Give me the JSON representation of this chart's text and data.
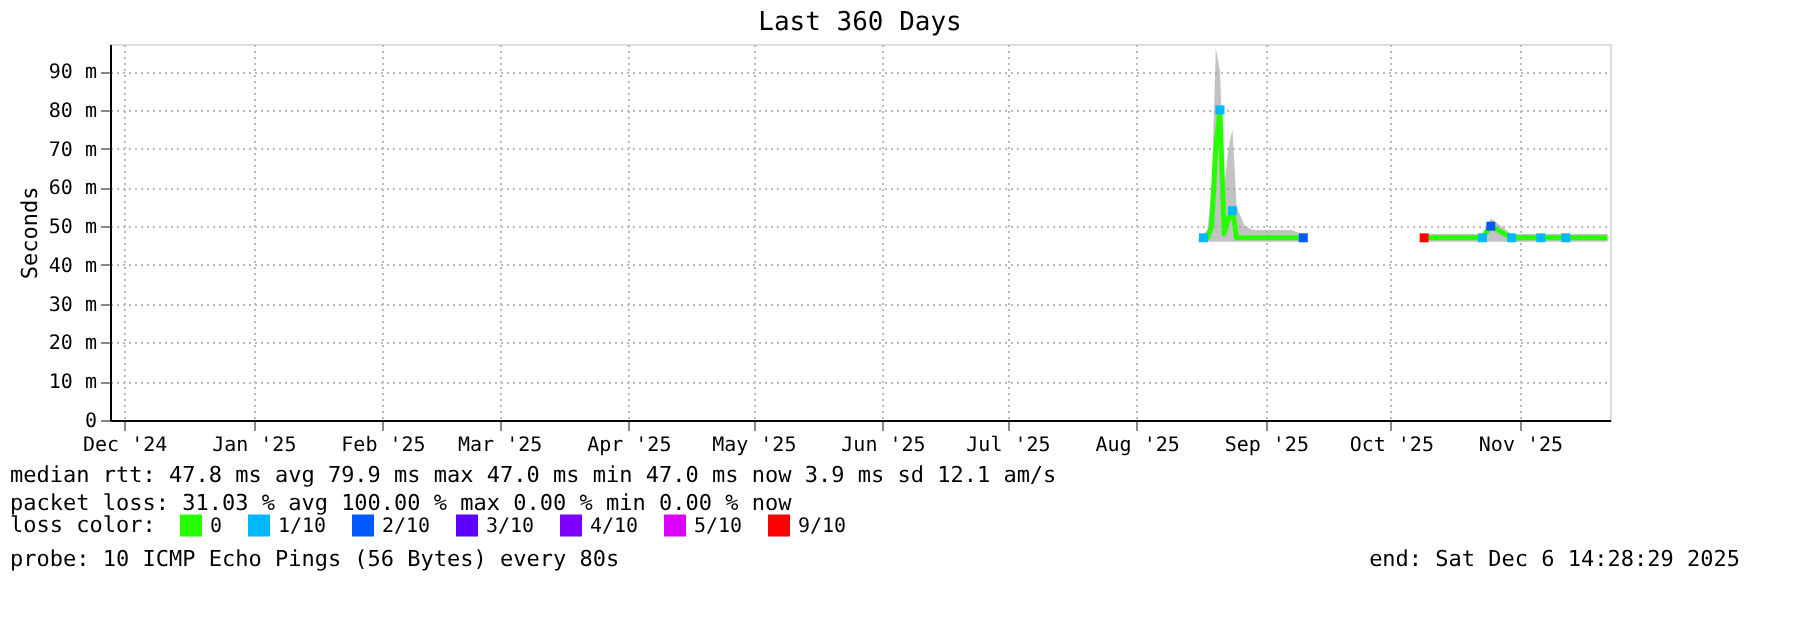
{
  "chart_data": {
    "type": "line",
    "title": "Last 360 Days",
    "ylabel": "Seconds",
    "legend_title": "loss color:",
    "legend": "bottom",
    "grid": true,
    "x": [
      "2025-08-31",
      "2025-09-01",
      "2025-09-02",
      "2025-09-03",
      "2025-09-04",
      "2025-09-05",
      "2025-09-06",
      "2025-09-07",
      "2025-09-08",
      "2025-09-10",
      "2025-09-12",
      "2025-09-15",
      "2025-09-18",
      "2025-09-21",
      "2025-09-24",
      "2025-10-08",
      "2025-10-23",
      "2025-10-30",
      "2025-11-06",
      "2025-11-08",
      "2025-11-13",
      "2025-11-20",
      "2025-11-26",
      "2025-12-02",
      "2025-12-06"
    ],
    "xlim": [
      "2024-12-11T14:28",
      "2025-12-06T14:28"
    ],
    "xticks": [
      {
        "value": "2024-12-15",
        "label": "Dec '24"
      },
      {
        "value": "2025-01-15",
        "label": "Jan '25"
      },
      {
        "value": "2025-02-15",
        "label": "Feb '25"
      },
      {
        "value": "2025-03-15",
        "label": "Mar '25"
      },
      {
        "value": "2025-04-15",
        "label": "Apr '25"
      },
      {
        "value": "2025-05-15",
        "label": "May '25"
      },
      {
        "value": "2025-06-15",
        "label": "Jun '25"
      },
      {
        "value": "2025-07-15",
        "label": "Jul '25"
      },
      {
        "value": "2025-08-15",
        "label": "Aug '25"
      },
      {
        "value": "2025-09-15",
        "label": "Sep '25"
      },
      {
        "value": "2025-10-15",
        "label": "Oct '25"
      },
      {
        "value": "2025-11-15",
        "label": "Nov '25"
      }
    ],
    "ylim": [
      0,
      97
    ],
    "yticks": [
      0,
      {
        "value": 10,
        "label": "10 m"
      },
      {
        "value": 20,
        "label": "20 m"
      },
      {
        "value": 30,
        "label": "30 m"
      },
      {
        "value": 40,
        "label": "40 m"
      },
      {
        "value": 50,
        "label": "50 m"
      },
      {
        "value": 60,
        "label": "60 m"
      },
      {
        "value": 70,
        "label": "70 m"
      },
      {
        "value": 80,
        "label": "80 m"
      },
      {
        "value": 90,
        "label": "90 m"
      }
    ],
    "series": [
      {
        "name": "0",
        "color": "#26ff00",
        "values": [
          47,
          47,
          50,
          70,
          80,
          48,
          52,
          54,
          47,
          47,
          47,
          47,
          47,
          47,
          47,
          null,
          47,
          47,
          47,
          50,
          47,
          47,
          47,
          47,
          47
        ],
        "lower": [
          46,
          46,
          46,
          46,
          46,
          46,
          46,
          46,
          46,
          46,
          46,
          46,
          46,
          46,
          46,
          null,
          46,
          46,
          46,
          46,
          46,
          46,
          46,
          46,
          46
        ],
        "upper": [
          48,
          49,
          60,
          96,
          90,
          60,
          70,
          75,
          55,
          50,
          49,
          49,
          49,
          49,
          48,
          null,
          48,
          48,
          48,
          52,
          48,
          48,
          48,
          48,
          48
        ]
      },
      {
        "name": "1/10",
        "color": "#00b8ff",
        "type": "scatter",
        "marker": "square",
        "values": [
          47,
          null,
          null,
          null,
          80,
          null,
          null,
          54,
          null,
          null,
          null,
          null,
          null,
          null,
          null,
          null,
          null,
          null,
          47,
          null,
          47,
          47,
          47,
          null,
          null
        ]
      },
      {
        "name": "2/10",
        "color": "#0059ff",
        "type": "scatter",
        "marker": "square",
        "values": [
          null,
          null,
          null,
          null,
          null,
          null,
          null,
          null,
          null,
          null,
          null,
          null,
          null,
          null,
          47,
          null,
          null,
          null,
          null,
          50,
          null,
          null,
          null,
          null,
          null
        ]
      },
      {
        "name": "3/10",
        "color": "#5e00ff",
        "type": "scatter",
        "marker": "square",
        "values": [
          null,
          null,
          null,
          null,
          null,
          null,
          null,
          null,
          null,
          null,
          null,
          null,
          null,
          null,
          null,
          null,
          null,
          null,
          null,
          null,
          null,
          null,
          null,
          null,
          null
        ]
      },
      {
        "name": "4/10",
        "color": "#7e00ff",
        "type": "scatter",
        "marker": "square",
        "values": [
          null,
          null,
          null,
          null,
          null,
          null,
          null,
          null,
          null,
          null,
          null,
          null,
          null,
          null,
          null,
          null,
          null,
          null,
          null,
          null,
          null,
          null,
          null,
          null,
          null
        ]
      },
      {
        "name": "5/10",
        "color": "#dd00ff",
        "type": "scatter",
        "marker": "square",
        "values": [
          null,
          null,
          null,
          null,
          null,
          null,
          null,
          null,
          null,
          null,
          null,
          null,
          null,
          null,
          null,
          null,
          null,
          null,
          null,
          null,
          null,
          null,
          null,
          null,
          null
        ]
      },
      {
        "name": "9/10",
        "color": "#ff0000",
        "type": "scatter",
        "marker": "square",
        "values": [
          null,
          null,
          null,
          null,
          null,
          null,
          null,
          null,
          null,
          null,
          null,
          null,
          null,
          null,
          null,
          null,
          47,
          null,
          null,
          null,
          null,
          null,
          null,
          null,
          null
        ]
      }
    ],
    "annotations": [
      "median rtt:  47.8 ms avg  79.9 ms max  47.0 ms min  47.0 ms now  3.9 ms sd  12.1   am/s",
      "packet loss: 31.03 % avg  100.00 % max  0.00 % min  0.00 % now",
      "probe:       10 ICMP Echo Pings (56 Bytes) every 80s",
      "end: Sat Dec  6 14:28:29 2025"
    ]
  }
}
